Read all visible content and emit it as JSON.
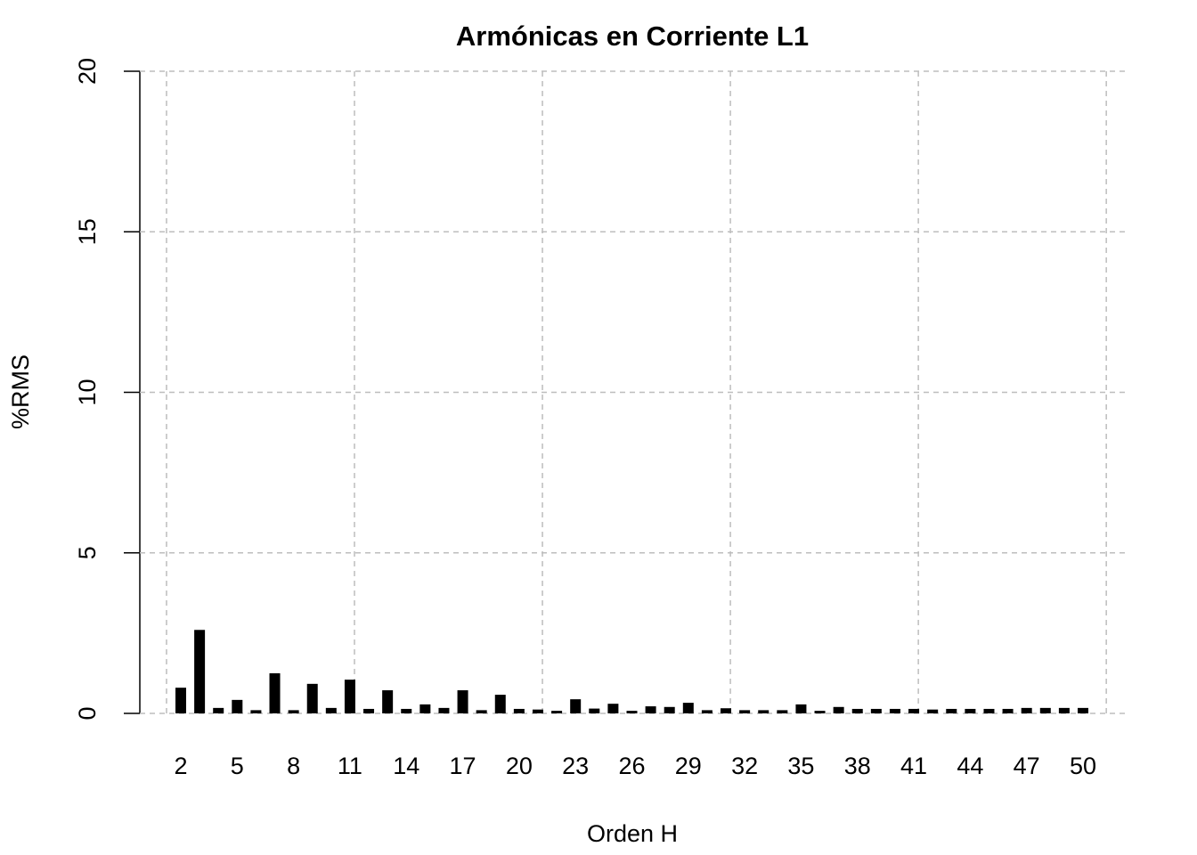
{
  "chart_data": {
    "type": "bar",
    "title": "Armónicas en Corriente L1",
    "xlabel": "Orden H",
    "ylabel": "%RMS",
    "categories": [
      "2",
      null,
      null,
      "5",
      null,
      null,
      "8",
      null,
      null,
      "11",
      null,
      null,
      "14",
      null,
      null,
      "17",
      null,
      null,
      "20",
      null,
      null,
      "23",
      null,
      null,
      "26",
      null,
      null,
      "29",
      null,
      null,
      "32",
      null,
      null,
      "35",
      null,
      null,
      "38",
      null,
      null,
      "41",
      null,
      null,
      "44",
      null,
      null,
      "47",
      null,
      null,
      "50"
    ],
    "values": [
      0.8,
      2.6,
      0.17,
      0.42,
      0.1,
      1.25,
      0.1,
      0.92,
      0.17,
      1.05,
      0.14,
      0.72,
      0.14,
      0.28,
      0.17,
      0.72,
      0.1,
      0.58,
      0.14,
      0.12,
      0.08,
      0.44,
      0.15,
      0.3,
      0.08,
      0.22,
      0.2,
      0.33,
      0.1,
      0.16,
      0.1,
      0.1,
      0.1,
      0.28,
      0.08,
      0.2,
      0.14,
      0.14,
      0.14,
      0.14,
      0.12,
      0.14,
      0.14,
      0.14,
      0.14,
      0.17,
      0.17,
      0.17,
      0.17
    ],
    "color": "#000000",
    "ylim": [
      0,
      20
    ],
    "yticks": [
      0,
      5,
      10,
      15,
      20
    ],
    "grid": true
  }
}
